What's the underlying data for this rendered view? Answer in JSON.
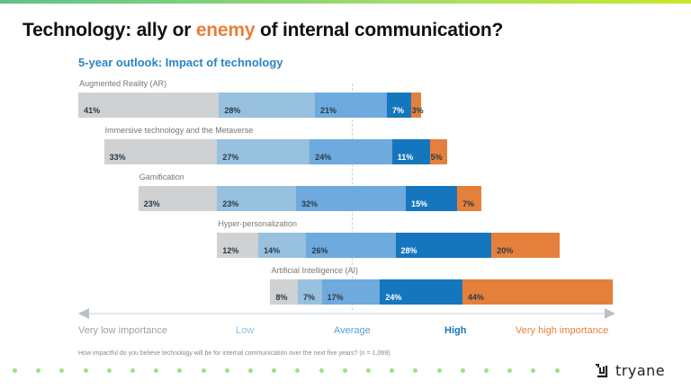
{
  "slide": {
    "title_prefix": "Technology: ally or ",
    "title_accent": "enemy",
    "title_suffix": " of internal communication?",
    "accent_color": "#e8803a",
    "footnote": "How impactful do you believe technology will be for internal communication over the next five years? (n = 1,069)",
    "logo_text": "tryane",
    "dot_count": 24
  },
  "chart_data": {
    "type": "bar",
    "stacked": true,
    "orientation": "horizontal",
    "diverging_center": "Average",
    "title": "5-year outlook: Impact of technology",
    "categories": [
      "Augmented Reality (AR)",
      "Immersive technology and the Metaverse",
      "Gamification",
      "Hyper-personalization",
      "Artificial Intelligence (AI)"
    ],
    "series": [
      {
        "name": "Very low importance",
        "color": "#cfd1d2",
        "label_color": "#9aa3ab",
        "values": [
          41,
          33,
          23,
          12,
          8
        ]
      },
      {
        "name": "Low",
        "color": "#97c1de",
        "label_color": "#8ec0e4",
        "values": [
          28,
          27,
          23,
          14,
          7
        ]
      },
      {
        "name": "Average",
        "color": "#6eaadd",
        "label_color": "#5b9fd6",
        "values": [
          21,
          24,
          32,
          26,
          17
        ]
      },
      {
        "name": "High",
        "color": "#1676bd",
        "label_color": "#1676bd",
        "values": [
          7,
          11,
          15,
          28,
          24
        ]
      },
      {
        "name": "Very high importance",
        "color": "#e5803c",
        "label_color": "#e8803a",
        "values": [
          3,
          5,
          7,
          20,
          44
        ]
      }
    ],
    "value_suffix": "%",
    "xlabel": "",
    "ylabel": "",
    "grid": false,
    "legend": "bottom"
  }
}
